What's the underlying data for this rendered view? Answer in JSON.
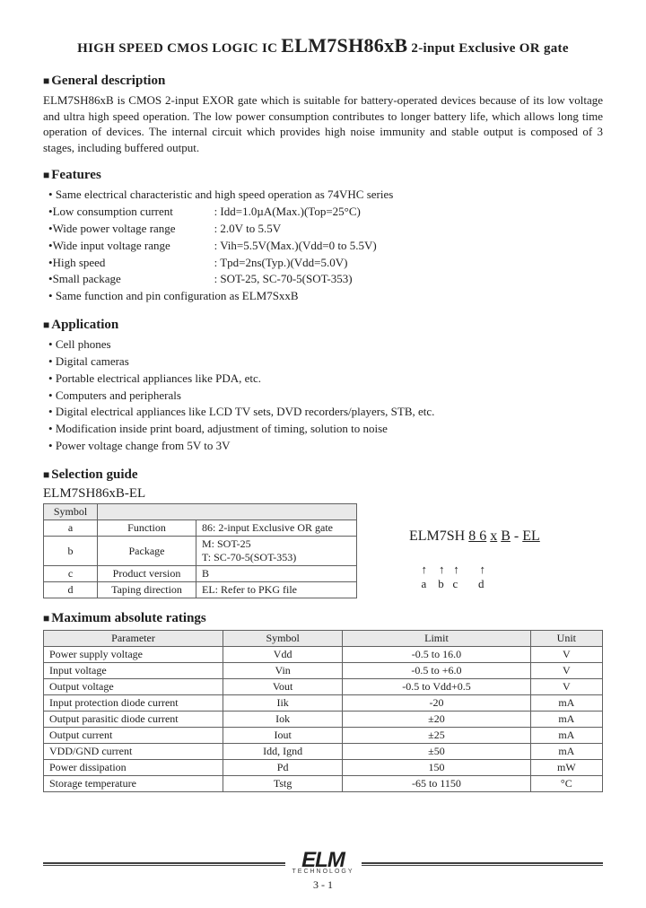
{
  "title": {
    "a": "HIGH SPEED CMOS LOGIC IC",
    "b": "ELM7SH86xB",
    "c": "2-input Exclusive OR gate"
  },
  "general": {
    "heading": "General description",
    "text": "ELM7SH86xB is CMOS 2-input EXOR gate which is suitable for battery-operated devices because of its low voltage and ultra high speed operation. The low power consumption contributes to longer battery life, which allows long time operation of devices. The internal circuit which provides high noise immunity and stable output is composed of 3 stages, including buffered output."
  },
  "features": {
    "heading": "Features",
    "items": [
      {
        "label": "Same electrical characteristic and high speed operation as 74VHC series",
        "val": ""
      },
      {
        "label": "Low consumption current",
        "val": ": Idd=1.0µA(Max.)(Top=25°C)"
      },
      {
        "label": "Wide power voltage range",
        "val": ": 2.0V to 5.5V"
      },
      {
        "label": "Wide input voltage range",
        "val": ": Vih=5.5V(Max.)(Vdd=0 to 5.5V)"
      },
      {
        "label": "High speed",
        "val": ": Tpd=2ns(Typ.)(Vdd=5.0V)"
      },
      {
        "label": "Small package",
        "val": ": SOT-25, SC-70-5(SOT-353)"
      },
      {
        "label": "Same function and pin configuration as ELM7SxxB",
        "val": ""
      }
    ]
  },
  "application": {
    "heading": "Application",
    "items": [
      "Cell phones",
      "Digital cameras",
      "Portable electrical appliances like PDA, etc.",
      "Computers and peripherals",
      "Digital electrical appliances like LCD TV sets, DVD recorders/players, STB, etc.",
      "Modification inside print board, adjustment of timing, solution to noise",
      "Power voltage change from 5V to 3V"
    ]
  },
  "selection": {
    "heading": "Selection guide",
    "part": "ELM7SH86xB-EL",
    "th_symbol": "Symbol",
    "rows": [
      {
        "s": "a",
        "l": "Function",
        "v": "86: 2-input Exclusive OR gate"
      },
      {
        "s": "b",
        "l": "Package",
        "v": "M: SOT-25\nT: SC-70-5(SOT-353)"
      },
      {
        "s": "c",
        "l": "Product version",
        "v": "B"
      },
      {
        "s": "d",
        "l": "Taping direction",
        "v": "EL: Refer to PKG file"
      }
    ],
    "code": {
      "prefix": "ELM7SH ",
      "a": "8 6",
      "b": "x",
      "c": "B",
      "sep": " - ",
      "d": "EL",
      "arrows": "              ↑    ↑   ↑       ↑",
      "letters": "              a    b   c       d"
    }
  },
  "max": {
    "heading": "Maximum absolute ratings",
    "headers": [
      "Parameter",
      "Symbol",
      "Limit",
      "Unit"
    ],
    "rows": [
      [
        "Power supply voltage",
        "Vdd",
        "-0.5 to 16.0",
        "V"
      ],
      [
        "Input voltage",
        "Vin",
        "-0.5 to +6.0",
        "V"
      ],
      [
        "Output voltage",
        "Vout",
        "-0.5 to Vdd+0.5",
        "V"
      ],
      [
        "Input protection diode current",
        "Iik",
        "-20",
        "mA"
      ],
      [
        "Output parasitic diode current",
        "Iok",
        "±20",
        "mA"
      ],
      [
        "Output current",
        "Iout",
        "±25",
        "mA"
      ],
      [
        "VDD/GND current",
        "Idd, Ignd",
        "±50",
        "mA"
      ],
      [
        "Power dissipation",
        "Pd",
        "150",
        "mW"
      ],
      [
        "Storage temperature",
        "Tstg",
        "-65 to 1150",
        "°C"
      ]
    ]
  },
  "footer": {
    "logo": "ELM",
    "logo_sub": "TECHNOLOGY",
    "page": "3 - 1"
  }
}
